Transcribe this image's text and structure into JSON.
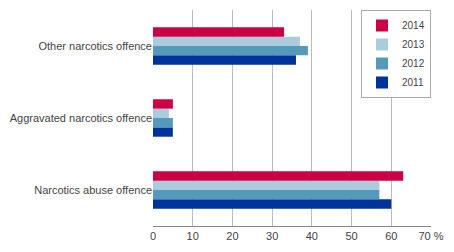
{
  "chart_data": {
    "type": "bar",
    "orientation": "horizontal",
    "categories": [
      "Narcotics abuse offence",
      "Aggravated narcotics offence",
      "Other narcotics offence"
    ],
    "series": [
      {
        "name": "2014",
        "color": "#cc0044",
        "values": [
          63,
          5,
          33
        ]
      },
      {
        "name": "2013",
        "color": "#aaccdd",
        "values": [
          57,
          4,
          37
        ]
      },
      {
        "name": "2012",
        "color": "#5599bb",
        "values": [
          57,
          5,
          39
        ]
      },
      {
        "name": "2011",
        "color": "#003399",
        "values": [
          60,
          5,
          36
        ]
      }
    ],
    "xlim": [
      0,
      70
    ],
    "xticks": [
      0,
      10,
      20,
      30,
      40,
      50,
      60,
      {
        "value": 70,
        "label": "70 %"
      }
    ],
    "grid": true,
    "legend": "upper right"
  }
}
